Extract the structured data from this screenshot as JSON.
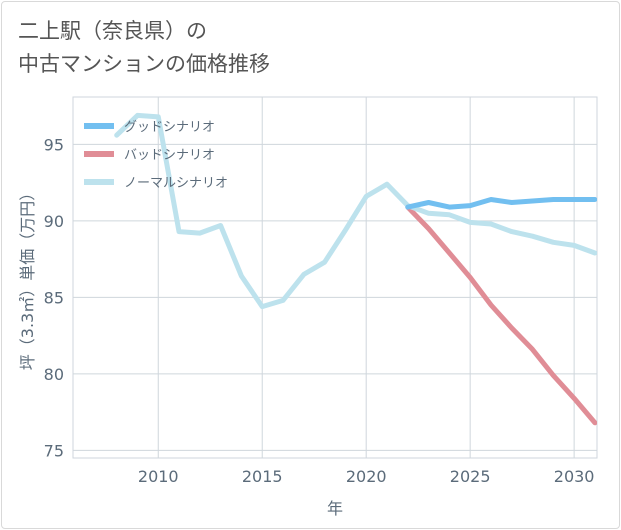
{
  "title": {
    "line1": "二上駅（奈良県）の",
    "line2": "中古マンションの価格推移"
  },
  "chart_data": {
    "type": "line",
    "title": "二上駅（奈良県）の中古マンションの価格推移",
    "xlabel": "年",
    "ylabel": "坪（3.3㎡）単価（万円）",
    "xlim": [
      2005.9,
      2031.1
    ],
    "ylim": [
      74.5,
      98.1
    ],
    "xticks": [
      2010,
      2015,
      2020,
      2025,
      2030
    ],
    "yticks": [
      75,
      80,
      85,
      90,
      95
    ],
    "grid": true,
    "legend_position": "top-left",
    "series": [
      {
        "name": "グッドシナリオ",
        "color": "#72bff0",
        "x": [
          2022,
          2023,
          2024,
          2025,
          2026,
          2027,
          2028,
          2029,
          2030,
          2031
        ],
        "y": [
          90.9,
          91.2,
          90.9,
          91.0,
          91.4,
          91.2,
          91.3,
          91.4,
          91.4,
          91.4
        ]
      },
      {
        "name": "バッドシナリオ",
        "color": "#e08d96",
        "x": [
          2022,
          2023,
          2024,
          2025,
          2026,
          2027,
          2028,
          2029,
          2030,
          2031
        ],
        "y": [
          90.9,
          89.5,
          87.9,
          86.3,
          84.5,
          83.0,
          81.6,
          79.9,
          78.4,
          76.8
        ]
      },
      {
        "name": "ノーマルシナリオ",
        "color": "#bde2ed",
        "x": [
          2008,
          2009,
          2010,
          2011,
          2012,
          2013,
          2014,
          2015,
          2016,
          2017,
          2018,
          2019,
          2020,
          2021,
          2022,
          2023,
          2024,
          2025,
          2026,
          2027,
          2028,
          2029,
          2030,
          2031
        ],
        "y": [
          95.6,
          96.9,
          96.8,
          89.3,
          89.2,
          89.7,
          86.4,
          84.4,
          84.8,
          86.5,
          87.3,
          89.4,
          91.6,
          92.4,
          91.0,
          90.5,
          90.4,
          89.9,
          89.8,
          89.3,
          89.0,
          88.6,
          88.4,
          87.9
        ]
      }
    ]
  }
}
